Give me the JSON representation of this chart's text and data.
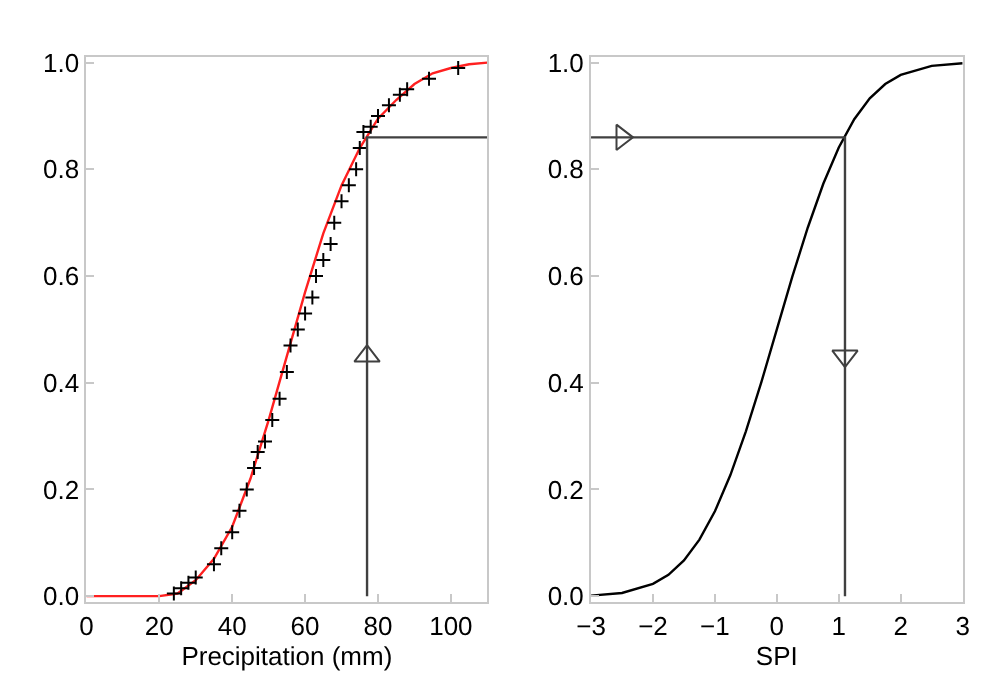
{
  "chart_data": [
    {
      "type": "line",
      "xlabel": "Precipitation (mm)",
      "xlim": [
        0,
        110
      ],
      "xticks": [
        0,
        20,
        40,
        60,
        80,
        100
      ],
      "ylim": [
        -0.01,
        1.01
      ],
      "yticks": [
        {
          "value": 0,
          "label": "0.0"
        },
        {
          "value": 0.2,
          "label": "0.2"
        },
        {
          "value": 0.4,
          "label": "0.4"
        },
        {
          "value": 0.6,
          "label": "0.6"
        },
        {
          "value": 0.8,
          "label": "0.8"
        },
        {
          "value": 1,
          "label": "1.0"
        }
      ],
      "series": [
        {
          "color": "#ff2020",
          "x": [
            0,
            20,
            25,
            30,
            35,
            40,
            45,
            50,
            55,
            60,
            65,
            70,
            75,
            80,
            85,
            90,
            95,
            100,
            105,
            110
          ],
          "values": [
            0,
            0,
            0.005,
            0.03,
            0.07,
            0.13,
            0.22,
            0.33,
            0.45,
            0.57,
            0.68,
            0.77,
            0.84,
            0.895,
            0.93,
            0.96,
            0.98,
            0.99,
            0.997,
            1.0
          ]
        },
        {
          "type": "scatter",
          "marker": "cross",
          "color": "#000000",
          "x": [
            24,
            26,
            28,
            30,
            35,
            37,
            40,
            42,
            44,
            46,
            47,
            49,
            51,
            53,
            55,
            56,
            58,
            60,
            62,
            63,
            65,
            67,
            68,
            70,
            72,
            74,
            75,
            76,
            78,
            80,
            83,
            86,
            88,
            94,
            102
          ],
          "values": [
            0.005,
            0.015,
            0.025,
            0.035,
            0.06,
            0.09,
            0.12,
            0.16,
            0.2,
            0.24,
            0.27,
            0.29,
            0.33,
            0.37,
            0.42,
            0.47,
            0.5,
            0.53,
            0.56,
            0.6,
            0.63,
            0.66,
            0.7,
            0.74,
            0.77,
            0.8,
            0.84,
            0.87,
            0.88,
            0.9,
            0.92,
            0.94,
            0.95,
            0.97,
            0.99
          ]
        },
        {
          "color": "#404040",
          "x": [
            77,
            77,
            110
          ],
          "values": [
            0,
            0.86,
            0.86
          ]
        },
        {
          "type": "scatter",
          "marker": "triangle",
          "color": "#404040",
          "x": [
            77
          ],
          "values": [
            0.45
          ]
        }
      ]
    },
    {
      "type": "line",
      "xlabel": "SPI",
      "xlim": [
        -3,
        3
      ],
      "xticks": [
        -3,
        -2,
        -1,
        0,
        1,
        2,
        3
      ],
      "ylim": [
        -0.01,
        1.01
      ],
      "yticks": [
        {
          "value": 0,
          "label": "0.0"
        },
        {
          "value": 0.2,
          "label": "0.2"
        },
        {
          "value": 0.4,
          "label": "0.4"
        },
        {
          "value": 0.6,
          "label": "0.6"
        },
        {
          "value": 0.8,
          "label": "0.8"
        },
        {
          "value": 1,
          "label": "1.0"
        }
      ],
      "series": [
        {
          "color": "#000000",
          "x": [
            -3,
            -2.5,
            -2,
            -1.75,
            -1.5,
            -1.25,
            -1,
            -0.75,
            -0.5,
            -0.25,
            0,
            0.25,
            0.5,
            0.75,
            1,
            1.25,
            1.5,
            1.75,
            2,
            2.5,
            3
          ],
          "values": [
            0.001,
            0.006,
            0.023,
            0.04,
            0.067,
            0.106,
            0.159,
            0.227,
            0.309,
            0.401,
            0.5,
            0.599,
            0.691,
            0.773,
            0.841,
            0.894,
            0.933,
            0.96,
            0.977,
            0.994,
            0.999
          ]
        },
        {
          "color": "#404040",
          "x": [
            -3,
            1.1,
            1.1
          ],
          "values": [
            0.86,
            0.86,
            0
          ]
        },
        {
          "type": "scatter",
          "marker": "triangle",
          "color": "#404040",
          "x": [
            -2.5
          ],
          "values": [
            0.86
          ]
        },
        {
          "type": "scatter",
          "marker": "triangle",
          "color": "#404040",
          "x": [
            1.1
          ],
          "values": [
            0.45
          ]
        }
      ]
    }
  ]
}
